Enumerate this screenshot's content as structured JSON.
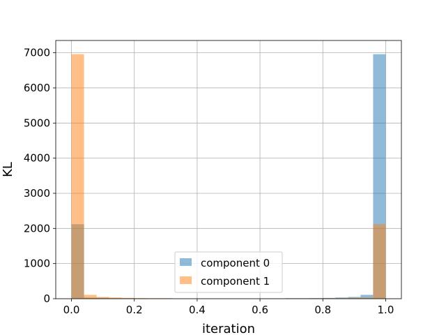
{
  "chart_data": {
    "type": "bar",
    "xlabel": "iteration",
    "ylabel": "KL",
    "xlim": [
      -0.05,
      1.05
    ],
    "ylim": [
      0,
      7350
    ],
    "xticks": [
      "0.0",
      "0.2",
      "0.4",
      "0.6",
      "0.8",
      "1.0"
    ],
    "xtick_values": [
      0.0,
      0.2,
      0.4,
      0.6,
      0.8,
      1.0
    ],
    "yticks": [
      "0",
      "1000",
      "2000",
      "3000",
      "4000",
      "5000",
      "6000",
      "7000"
    ],
    "ytick_values": [
      0,
      1000,
      2000,
      3000,
      4000,
      5000,
      6000,
      7000
    ],
    "grid": true,
    "legend_position": "lower-center",
    "bin_edges": [
      0.0,
      0.04,
      0.08,
      0.12,
      0.16,
      0.2,
      0.24,
      0.28,
      0.32,
      0.36,
      0.4,
      0.44,
      0.48,
      0.52,
      0.56,
      0.6,
      0.64,
      0.68,
      0.72,
      0.76,
      0.8,
      0.84,
      0.88,
      0.92,
      0.96,
      1.0
    ],
    "series": [
      {
        "name": "component 0",
        "color": "#1f77b4",
        "alpha": 0.5,
        "values": [
          2120,
          30,
          25,
          15,
          15,
          12,
          10,
          10,
          8,
          8,
          8,
          8,
          8,
          8,
          8,
          10,
          10,
          15,
          15,
          18,
          22,
          35,
          50,
          110,
          6960
        ]
      },
      {
        "name": "component 1",
        "color": "#ff7f0e",
        "alpha": 0.5,
        "values": [
          6960,
          110,
          50,
          35,
          22,
          18,
          15,
          15,
          10,
          10,
          8,
          8,
          8,
          8,
          8,
          8,
          8,
          10,
          10,
          12,
          15,
          15,
          25,
          30,
          2120
        ]
      }
    ]
  }
}
